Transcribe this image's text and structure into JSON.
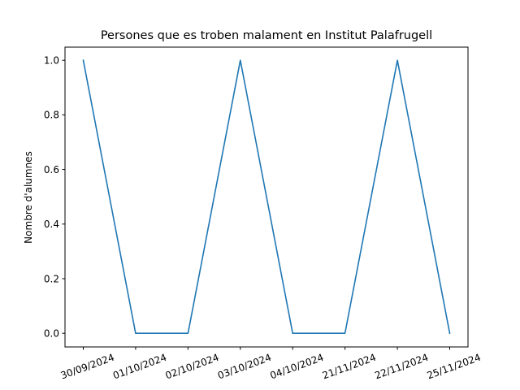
{
  "chart_data": {
    "type": "line",
    "title": "Persones que es troben malament en Institut Palafrugell",
    "xlabel": "",
    "ylabel": "Nombre d'alumnes",
    "categories": [
      "30/09/2024",
      "01/10/2024",
      "02/10/2024",
      "03/10/2024",
      "04/10/2024",
      "21/11/2024",
      "22/11/2024",
      "25/11/2024"
    ],
    "series": [
      {
        "values": [
          1,
          0,
          0,
          1,
          0,
          0,
          1,
          0
        ],
        "color": "#1f77b4"
      }
    ],
    "yticks": [
      "0.0",
      "0.2",
      "0.4",
      "0.6",
      "0.8",
      "1.0"
    ],
    "ylim": [
      -0.05,
      1.05
    ],
    "grid": false,
    "legend": "none"
  }
}
